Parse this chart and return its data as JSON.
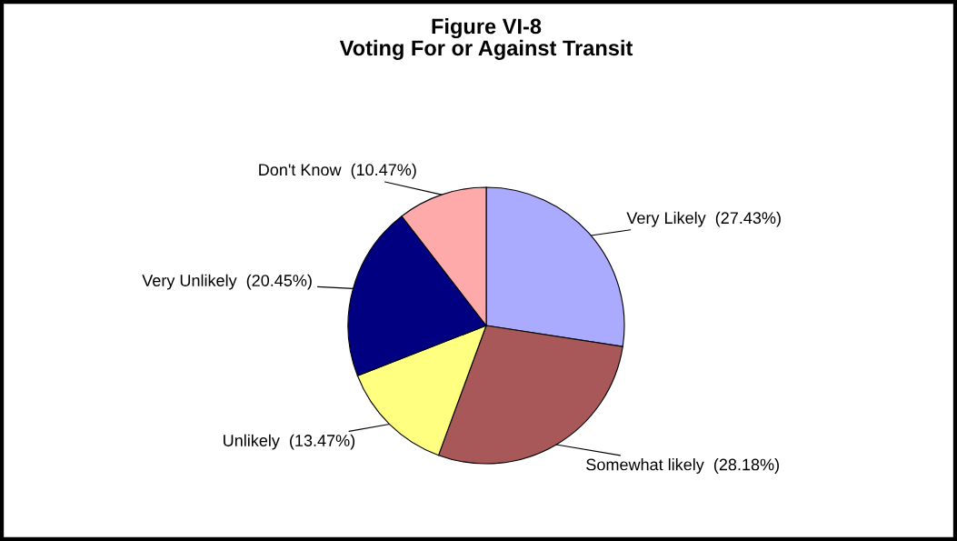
{
  "chart_data": {
    "type": "pie",
    "title": "Figure VI-8\nVoting For or Against Transit",
    "categories": [
      "Very Likely",
      "Somewhat likely",
      "Unlikely",
      "Very Unlikely",
      "Don't Know"
    ],
    "values": [
      27.43,
      28.18,
      13.47,
      20.45,
      10.47
    ],
    "colors": [
      "#aaaaff",
      "#a85858",
      "#ffff80",
      "#000080",
      "#ffaaaa"
    ],
    "value_labels": [
      "(27.43%)",
      "(28.18%)",
      "(13.47%)",
      "(20.45%)",
      "(10.47%)"
    ],
    "legend": false
  }
}
